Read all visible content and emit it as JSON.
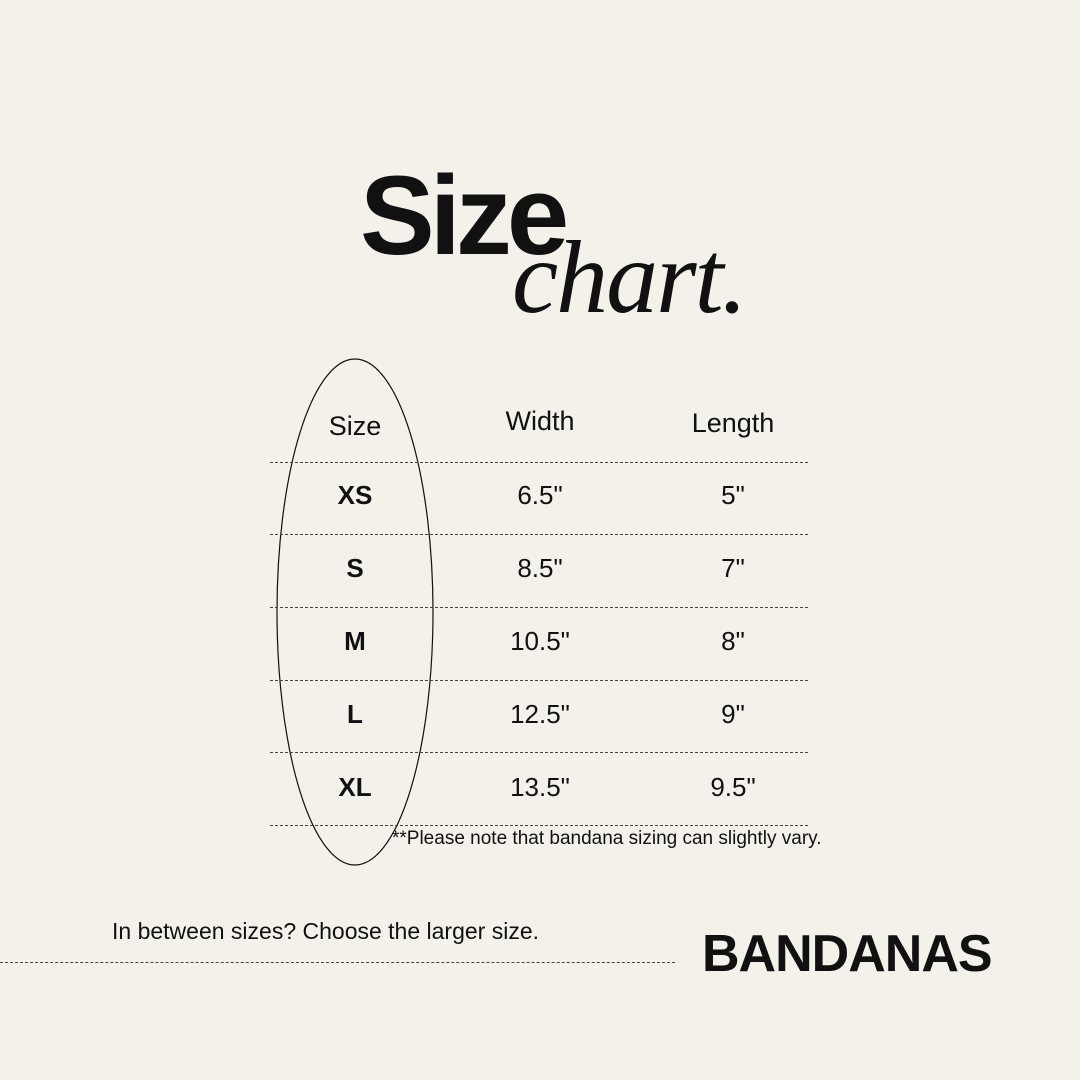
{
  "title": {
    "main": "Size",
    "script": "chart."
  },
  "table": {
    "headers": [
      "Size",
      "Width",
      "Length"
    ],
    "rows": [
      {
        "size": "XS",
        "width": "6.5\"",
        "length": "5\""
      },
      {
        "size": "S",
        "width": "8.5\"",
        "length": "7\""
      },
      {
        "size": "M",
        "width": "10.5\"",
        "length": "8\""
      },
      {
        "size": "L",
        "width": "12.5\"",
        "length": "9\""
      },
      {
        "size": "XL",
        "width": "13.5\"",
        "length": "9.5\""
      }
    ]
  },
  "note": "**Please note that bandana sizing can slightly vary.",
  "tip": "In between sizes? Choose the larger size.",
  "product": "BANDANAS",
  "colors": {
    "background": "#f4f0ea",
    "text": "#111111"
  }
}
